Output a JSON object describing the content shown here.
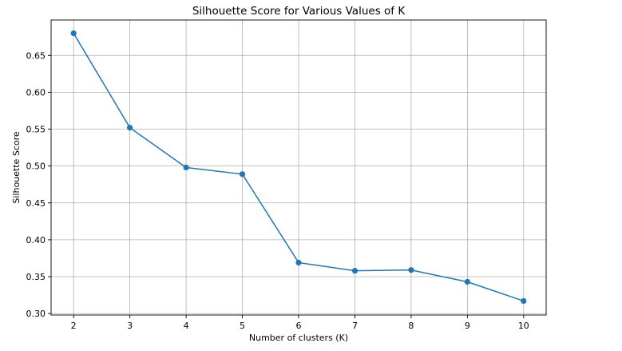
{
  "chart_data": {
    "type": "line",
    "title": "Silhouette Score for Various Values of K",
    "xlabel": "Number of clusters (K)",
    "ylabel": "Silhouette Score",
    "x": [
      2,
      3,
      4,
      5,
      6,
      7,
      8,
      9,
      10
    ],
    "series": [
      {
        "values": [
          0.68,
          0.552,
          0.498,
          0.489,
          0.369,
          0.358,
          0.359,
          0.343,
          0.317
        ],
        "color": "#1f77b4",
        "marker": "circle"
      }
    ],
    "xticks": [
      2,
      3,
      4,
      5,
      6,
      7,
      8,
      9,
      10
    ],
    "yticks": [
      0.3,
      0.35,
      0.4,
      0.45,
      0.5,
      0.55,
      0.6,
      0.65
    ],
    "xlim": [
      1.6,
      10.4
    ],
    "ylim": [
      0.298,
      0.698
    ],
    "grid": true,
    "legend": "none"
  }
}
